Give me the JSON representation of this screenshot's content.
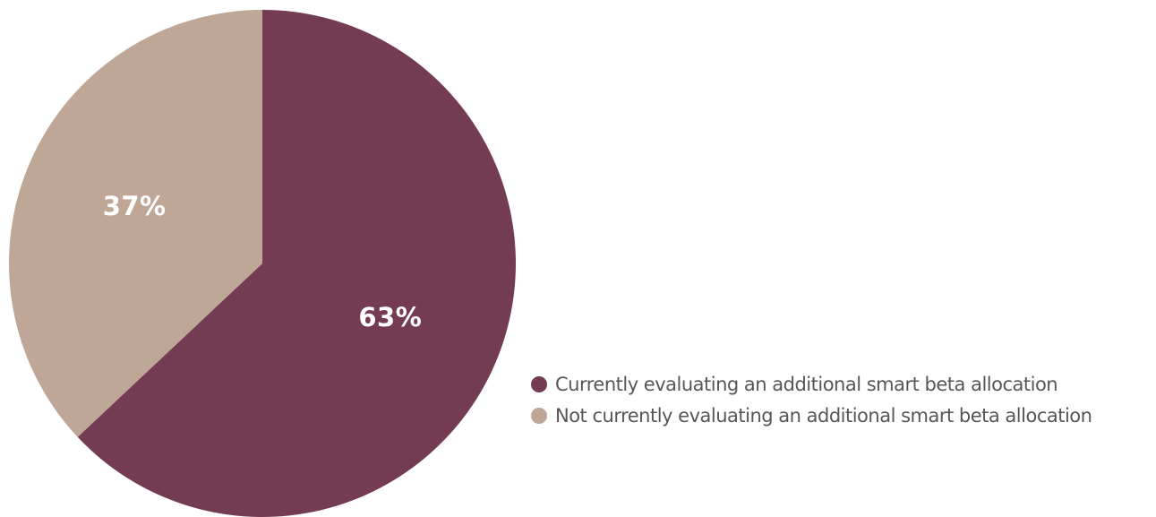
{
  "chart_data": {
    "type": "pie",
    "title": "",
    "slices": [
      {
        "label": "Currently evaluating an additional smart beta allocation",
        "value": 63,
        "display": "63%",
        "color": "#743c53"
      },
      {
        "label": "Not currently evaluating an additional smart beta allocation",
        "value": 37,
        "display": "37%",
        "color": "#bfa797"
      }
    ],
    "start": "12 o'clock",
    "direction": "clockwise",
    "legend_position": "bottom-right"
  }
}
